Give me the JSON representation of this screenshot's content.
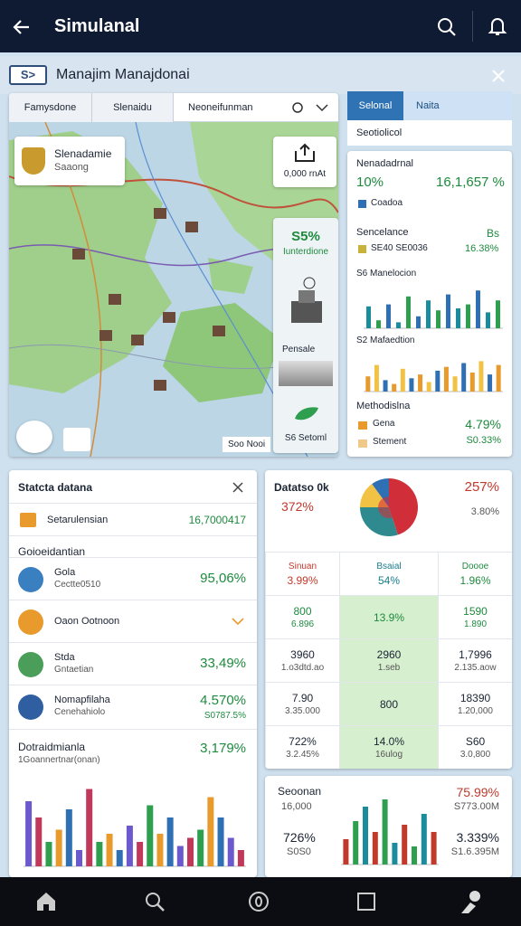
{
  "header": {
    "title": "Simulanal"
  },
  "banner": {
    "badge": "S>",
    "title": "Manajim Manajdonai"
  },
  "map": {
    "tabs": [
      "Famysdone",
      "Slenaidu",
      "Neoneifunman"
    ],
    "card_title": "Slenadamie",
    "card_subtitle": "Saaong",
    "tool_label": "0,000 rnAt",
    "stat_value": "S5%",
    "stat_label": "Iunterdione",
    "tile_label": "Pensale",
    "leaf_label": "S6 Setoml",
    "scale_label": "Soo Nooi"
  },
  "right_panel": {
    "tabs": [
      "Selonal",
      "Naita"
    ],
    "dropdown": "Seotiolicol",
    "summary": {
      "title": "Nenadadrnal",
      "left": "10%",
      "right": "16,1,657 %",
      "legend": "Coadoa"
    },
    "balance": {
      "title": "Sencelance",
      "tag": "Bs",
      "legend": "SE40 SE0036",
      "value": "16.38%"
    },
    "chart1": {
      "title": "S6 Manelocion",
      "values": [
        55,
        20,
        60,
        15,
        80,
        30,
        70,
        45,
        85,
        50,
        60,
        95,
        40,
        70
      ],
      "colors": [
        "#1a8c9c",
        "#2e9e4f",
        "#2f6fb3"
      ]
    },
    "chart2": {
      "title": "S2 Mafaedtion",
      "values": [
        40,
        70,
        30,
        20,
        60,
        35,
        45,
        25,
        55,
        65,
        40,
        75,
        50,
        80,
        45,
        70
      ],
      "colors": [
        "#e89a2c",
        "#f2c244",
        "#2f6fb3"
      ]
    },
    "methods": {
      "title": "Methodislna",
      "rows": [
        {
          "name": "Gena",
          "value": "4.79%"
        },
        {
          "name": "Stement",
          "value": "S0.33%"
        }
      ],
      "colors": [
        "#e89a2c",
        "#f0c98a"
      ]
    }
  },
  "stats_panel": {
    "title": "Statcta datana",
    "top_row": {
      "label": "Setarulensian",
      "value": "16,7000417"
    },
    "section": "Goioeidantian",
    "items": [
      {
        "name": "Gola",
        "sub": "Cectte0510",
        "value": "95,06%"
      },
      {
        "name": "Oaon Ootnoon"
      },
      {
        "name": "Stda",
        "sub": "Gntaetian",
        "value": "33,49%"
      },
      {
        "name": "Nomapfilaha",
        "sub": "Cenehahiolo",
        "value": "4.570%",
        "sub_value": "S0787.5%"
      }
    ],
    "footer": {
      "name": "Dotraidmianla",
      "sub": "1Goannertnar(onan)",
      "value": "3,179%"
    },
    "chart": {
      "values": [
        80,
        60,
        30,
        45,
        70,
        20,
        95,
        30,
        40,
        20,
        50,
        30,
        75,
        40,
        60,
        25,
        35,
        45,
        85,
        60,
        35,
        20
      ],
      "colors": [
        "#6a5acd",
        "#c0395b",
        "#2e9e4f",
        "#e89a2c",
        "#2f6fb3"
      ]
    }
  },
  "data_panel": {
    "title": "Datatso 0k",
    "top_right": "257%",
    "left_value": "372%",
    "right_value": "3.80%",
    "pie": {
      "values": [
        45,
        30,
        15,
        10
      ],
      "colors": [
        "#d02f3a",
        "#2e8a8f",
        "#f2c244",
        "#2f6fb3"
      ]
    },
    "table": {
      "rows": [
        [
          {
            "value": "3.99%",
            "sub": "Sinuan"
          },
          {
            "value": "54%",
            "sub": "Bsaial"
          },
          {
            "value": "1.96%",
            "sub": "Doooe"
          }
        ],
        [
          {
            "value": "800",
            "sub": "6.896"
          },
          {
            "value": "13.9%"
          },
          {
            "value": "1590",
            "sub": "1.890"
          }
        ],
        [
          {
            "value": "3960",
            "sub": "1.o3dtd.ao"
          },
          {
            "value": "2960",
            "sub": "1.seb"
          },
          {
            "value": "1,7996",
            "sub": "2.135.aow"
          }
        ],
        [
          {
            "value": "7.90",
            "sub": "3.35.000"
          },
          {
            "value": "800"
          },
          {
            "value": "18390",
            "sub": "1.20,000"
          }
        ],
        [
          {
            "value": "722%",
            "sub": "3.2.45%"
          },
          {
            "value": "14.0%",
            "sub": "16ulog"
          },
          {
            "value": "S60",
            "sub": "3.0,800"
          }
        ]
      ]
    }
  },
  "summary_panel": {
    "title": "Seoonan",
    "sub": "16,000",
    "left_value": "726%",
    "left_sub": "S0S0",
    "right_top": "75.99%",
    "right_top_sub": "S773.00M",
    "right_value": "3.339%",
    "right_sub": "S1.6.395M",
    "chart": {
      "values": [
        35,
        60,
        80,
        45,
        90,
        30,
        55,
        25,
        70,
        45
      ],
      "colors": [
        "#c0392b",
        "#2e9e4f",
        "#1a8c9c"
      ]
    }
  }
}
